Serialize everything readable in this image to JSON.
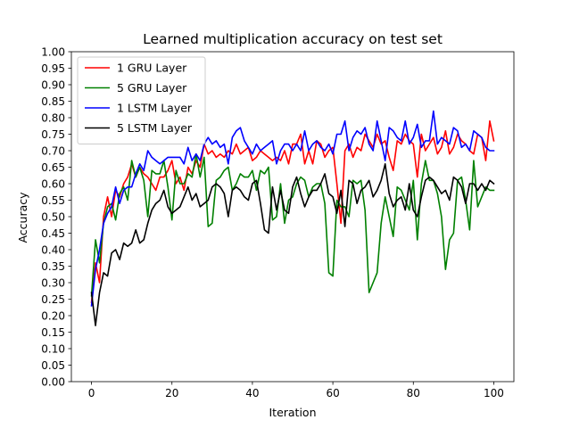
{
  "chart_data": {
    "type": "line",
    "title": "Learned multiplication accuracy on test set",
    "xlabel": "Iteration",
    "ylabel": "Accuracy",
    "xlim": [
      -5,
      105
    ],
    "ylim": [
      0.0,
      1.0
    ],
    "xticks": [
      0,
      20,
      40,
      60,
      80,
      100
    ],
    "yticks": [
      0.0,
      0.05,
      0.1,
      0.15,
      0.2,
      0.25,
      0.3,
      0.35,
      0.4,
      0.45,
      0.5,
      0.55,
      0.6,
      0.65,
      0.7,
      0.75,
      0.8,
      0.85,
      0.9,
      0.95,
      1.0
    ],
    "ytick_labels": [
      "0.00",
      "0.05",
      "0.10",
      "0.15",
      "0.20",
      "0.25",
      "0.30",
      "0.35",
      "0.40",
      "0.45",
      "0.50",
      "0.55",
      "0.60",
      "0.65",
      "0.70",
      "0.75",
      "0.80",
      "0.85",
      "0.90",
      "0.95",
      "1.00"
    ],
    "grid": false,
    "legend_position": "top-left",
    "series": [
      {
        "name": "1 GRU Layer",
        "color": "#ff0000",
        "values": [
          0.24,
          0.36,
          0.3,
          0.5,
          0.56,
          0.5,
          0.58,
          0.56,
          0.6,
          0.62,
          0.66,
          0.62,
          0.65,
          0.63,
          0.62,
          0.6,
          0.58,
          0.62,
          0.62,
          0.64,
          0.67,
          0.6,
          0.62,
          0.58,
          0.65,
          0.63,
          0.67,
          0.65,
          0.72,
          0.69,
          0.7,
          0.68,
          0.69,
          0.68,
          0.7,
          0.69,
          0.72,
          0.69,
          0.7,
          0.71,
          0.67,
          0.68,
          0.7,
          0.69,
          0.68,
          0.67,
          0.68,
          0.67,
          0.7,
          0.66,
          0.72,
          0.72,
          0.75,
          0.66,
          0.7,
          0.66,
          0.73,
          0.72,
          0.68,
          0.7,
          0.71,
          0.6,
          0.48,
          0.7,
          0.72,
          0.68,
          0.71,
          0.7,
          0.75,
          0.73,
          0.71,
          0.75,
          0.72,
          0.73,
          0.68,
          0.64,
          0.73,
          0.72,
          0.75,
          0.73,
          0.72,
          0.62,
          0.75,
          0.7,
          0.72,
          0.74,
          0.69,
          0.71,
          0.76,
          0.69,
          0.71,
          0.75,
          0.73,
          0.72,
          0.7,
          0.69,
          0.75,
          0.74,
          0.67,
          0.79,
          0.73
        ]
      },
      {
        "name": "5 GRU Layer",
        "color": "#008000",
        "values": [
          0.26,
          0.43,
          0.36,
          0.48,
          0.53,
          0.54,
          0.49,
          0.57,
          0.59,
          0.55,
          0.67,
          0.62,
          0.65,
          0.61,
          0.5,
          0.64,
          0.63,
          0.63,
          0.67,
          0.59,
          0.49,
          0.64,
          0.6,
          0.6,
          0.63,
          0.62,
          0.69,
          0.62,
          0.68,
          0.47,
          0.48,
          0.61,
          0.62,
          0.64,
          0.65,
          0.58,
          0.6,
          0.63,
          0.62,
          0.62,
          0.64,
          0.58,
          0.64,
          0.63,
          0.65,
          0.49,
          0.5,
          0.6,
          0.48,
          0.55,
          0.56,
          0.6,
          0.62,
          0.61,
          0.56,
          0.59,
          0.6,
          0.6,
          0.54,
          0.33,
          0.32,
          0.55,
          0.53,
          0.53,
          0.5,
          0.61,
          0.6,
          0.61,
          0.52,
          0.27,
          0.3,
          0.33,
          0.48,
          0.56,
          0.5,
          0.44,
          0.59,
          0.58,
          0.55,
          0.52,
          0.61,
          0.43,
          0.6,
          0.67,
          0.61,
          0.61,
          0.57,
          0.5,
          0.34,
          0.43,
          0.45,
          0.61,
          0.62,
          0.55,
          0.46,
          0.67,
          0.53,
          0.56,
          0.59,
          0.58,
          0.58
        ]
      },
      {
        "name": "1 LSTM Layer",
        "color": "#0000ff",
        "values": [
          0.23,
          0.34,
          0.4,
          0.48,
          0.51,
          0.53,
          0.59,
          0.54,
          0.58,
          0.59,
          0.59,
          0.63,
          0.66,
          0.64,
          0.7,
          0.68,
          0.67,
          0.66,
          0.67,
          0.68,
          0.68,
          0.68,
          0.68,
          0.66,
          0.71,
          0.67,
          0.69,
          0.67,
          0.72,
          0.74,
          0.72,
          0.73,
          0.71,
          0.72,
          0.66,
          0.74,
          0.76,
          0.77,
          0.73,
          0.71,
          0.69,
          0.72,
          0.7,
          0.71,
          0.72,
          0.73,
          0.66,
          0.7,
          0.72,
          0.72,
          0.7,
          0.72,
          0.7,
          0.76,
          0.7,
          0.72,
          0.73,
          0.71,
          0.7,
          0.72,
          0.69,
          0.75,
          0.75,
          0.79,
          0.7,
          0.74,
          0.76,
          0.75,
          0.77,
          0.72,
          0.7,
          0.79,
          0.73,
          0.67,
          0.77,
          0.76,
          0.74,
          0.73,
          0.79,
          0.72,
          0.74,
          0.78,
          0.71,
          0.73,
          0.73,
          0.82,
          0.72,
          0.74,
          0.73,
          0.72,
          0.77,
          0.76,
          0.71,
          0.72,
          0.7,
          0.76,
          0.75,
          0.74,
          0.71,
          0.7,
          0.7
        ]
      },
      {
        "name": "5 LSTM Layer",
        "color": "#000000",
        "values": [
          0.27,
          0.17,
          0.27,
          0.33,
          0.32,
          0.39,
          0.4,
          0.37,
          0.42,
          0.41,
          0.42,
          0.46,
          0.42,
          0.43,
          0.48,
          0.52,
          0.54,
          0.55,
          0.58,
          0.53,
          0.51,
          0.52,
          0.53,
          0.56,
          0.59,
          0.55,
          0.57,
          0.53,
          0.54,
          0.55,
          0.59,
          0.6,
          0.59,
          0.57,
          0.5,
          0.58,
          0.59,
          0.58,
          0.56,
          0.55,
          0.6,
          0.61,
          0.54,
          0.46,
          0.45,
          0.59,
          0.52,
          0.58,
          0.52,
          0.51,
          0.59,
          0.62,
          0.57,
          0.53,
          0.56,
          0.58,
          0.58,
          0.6,
          0.63,
          0.57,
          0.56,
          0.51,
          0.58,
          0.47,
          0.61,
          0.6,
          0.54,
          0.58,
          0.59,
          0.61,
          0.56,
          0.58,
          0.61,
          0.66,
          0.57,
          0.53,
          0.55,
          0.56,
          0.52,
          0.6,
          0.52,
          0.5,
          0.56,
          0.61,
          0.62,
          0.61,
          0.59,
          0.57,
          0.58,
          0.55,
          0.62,
          0.61,
          0.59,
          0.54,
          0.6,
          0.6,
          0.58,
          0.6,
          0.58,
          0.61,
          0.6
        ]
      }
    ]
  }
}
